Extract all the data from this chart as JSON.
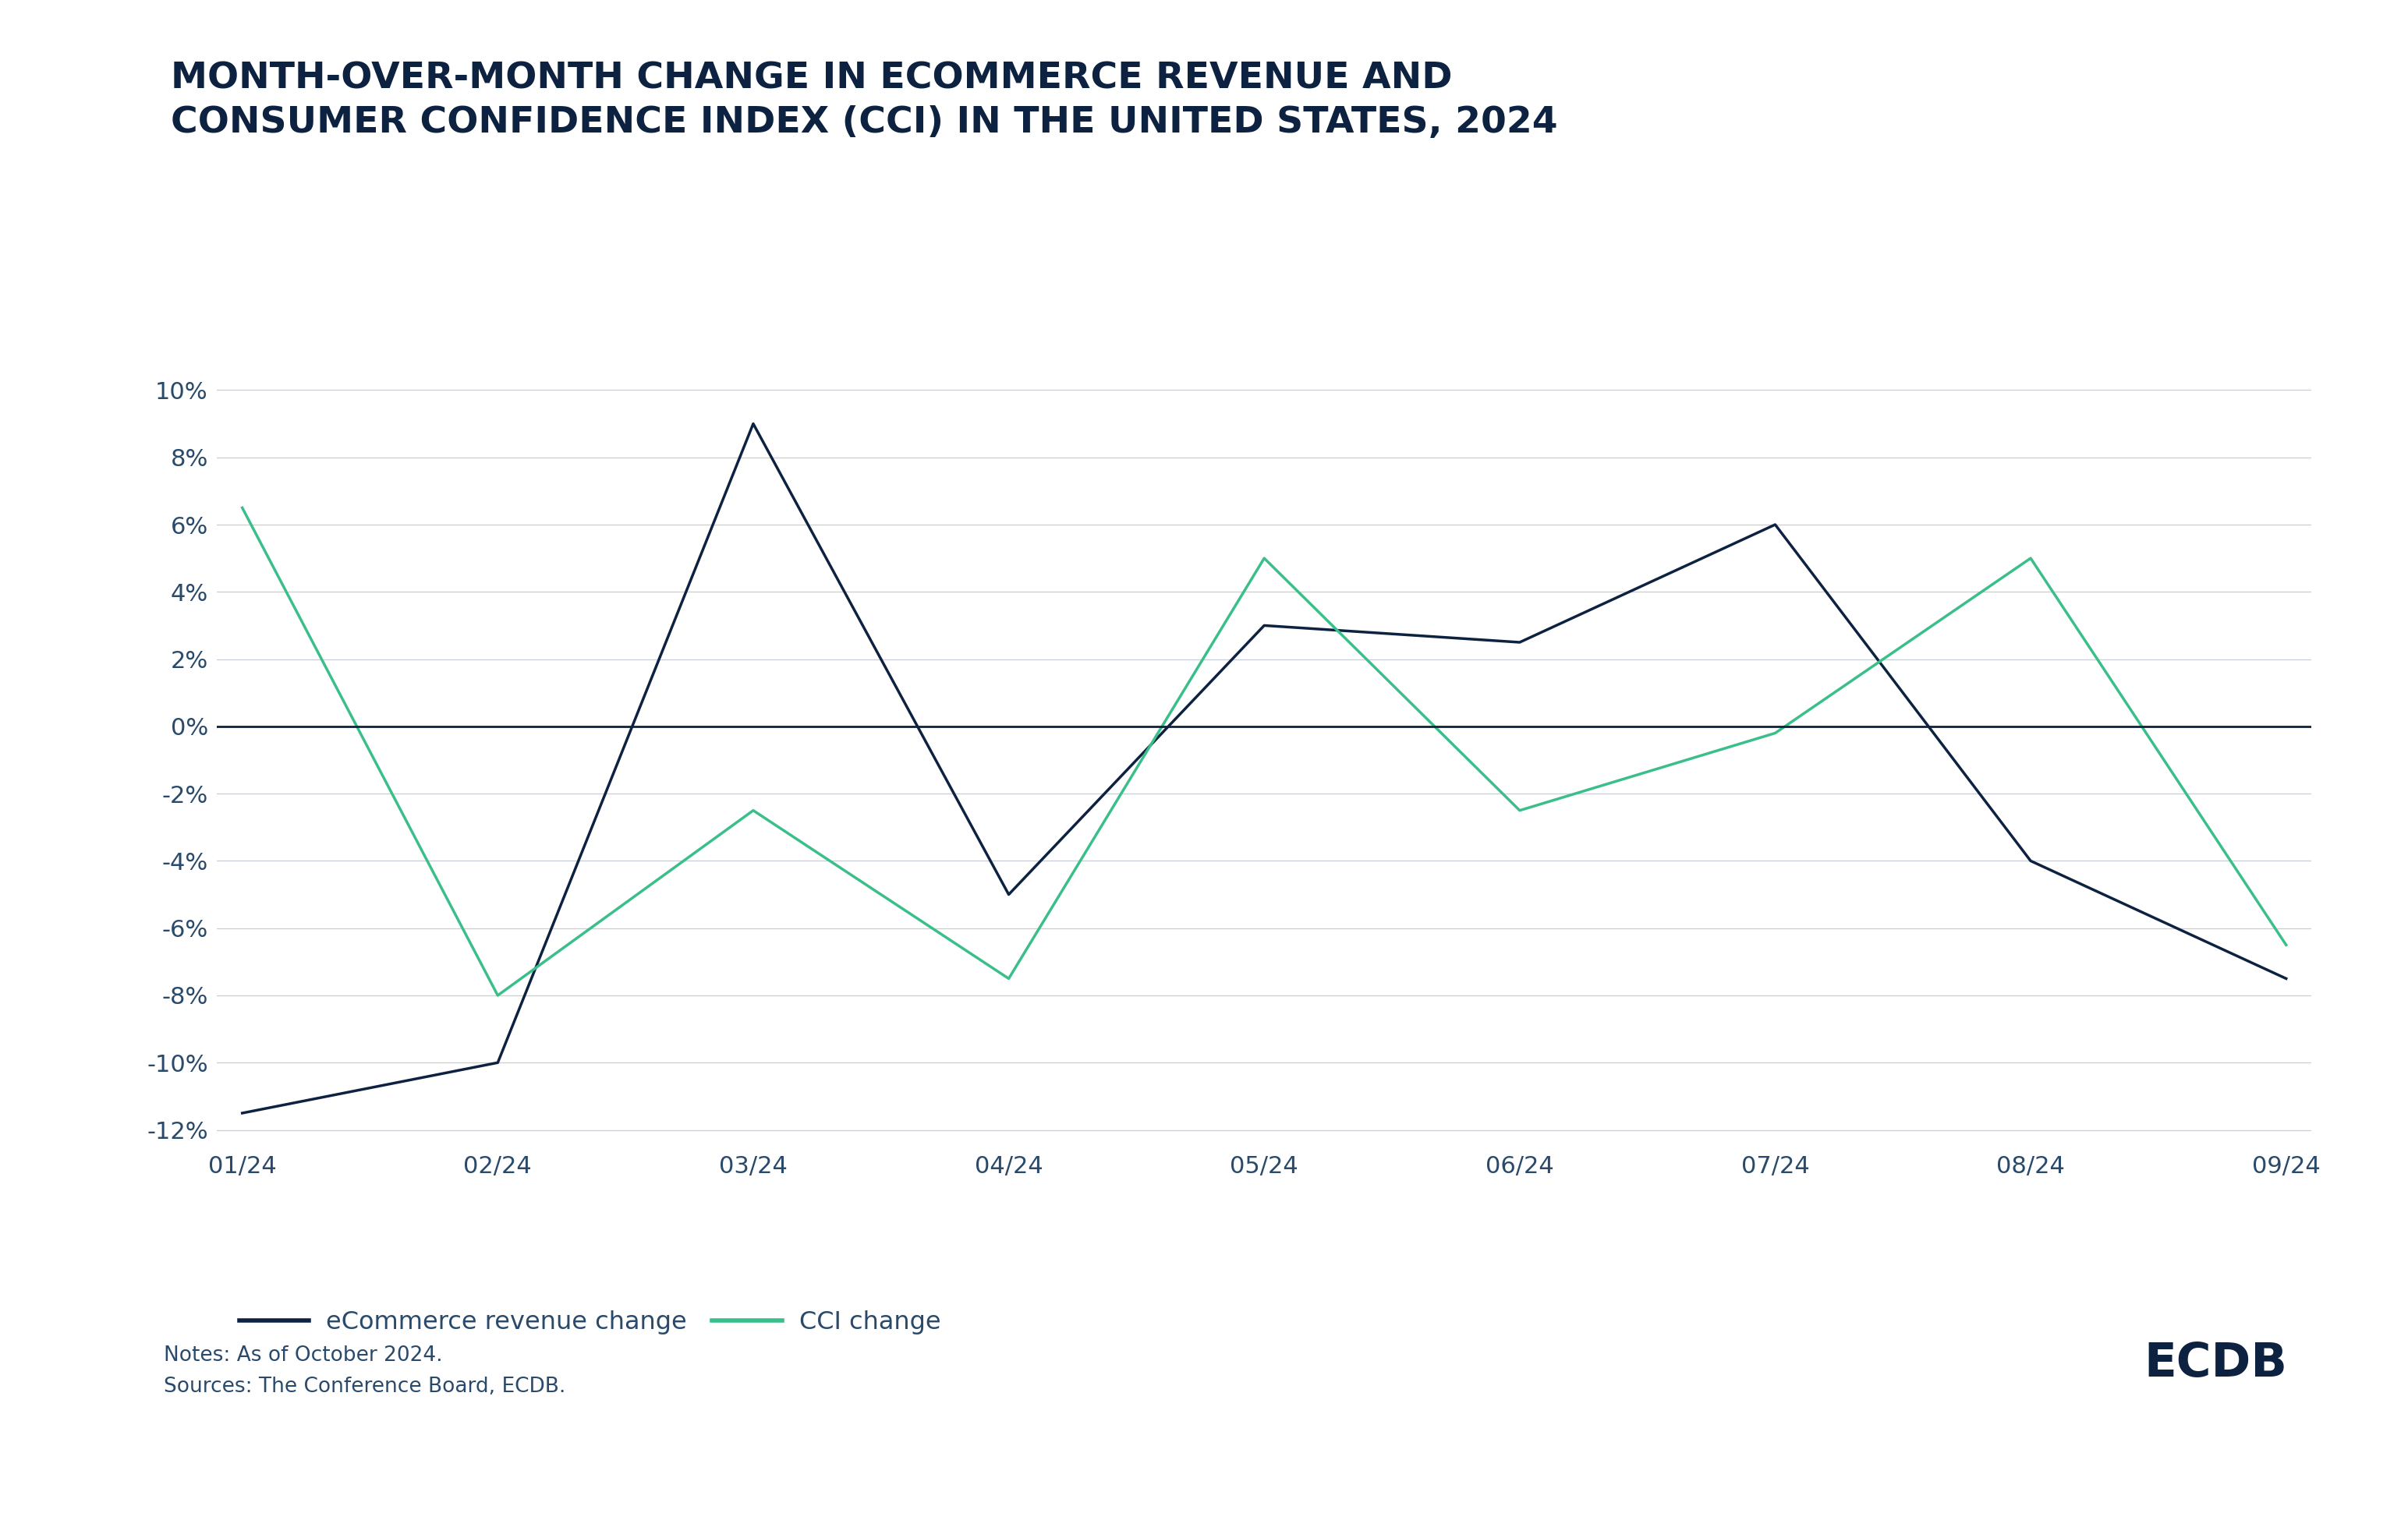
{
  "title_line1": "MONTH-OVER-MONTH CHANGE IN ECOMMERCE REVENUE AND",
  "title_line2": "CONSUMER CONFIDENCE INDEX (CCI) IN THE UNITED STATES, 2024",
  "x_labels": [
    "01/24",
    "02/24",
    "03/24",
    "04/24",
    "05/24",
    "06/24",
    "07/24",
    "08/24",
    "09/24"
  ],
  "ecommerce_values": [
    -11.5,
    -10.0,
    9.0,
    -5.0,
    3.0,
    2.5,
    6.0,
    -4.0,
    -7.5
  ],
  "cci_values": [
    6.5,
    -8.0,
    -2.5,
    -7.5,
    5.0,
    -2.5,
    -0.2,
    5.0,
    -6.5
  ],
  "ecommerce_color": "#0d2240",
  "cci_color": "#3bbf8a",
  "background_color": "#ffffff",
  "grid_color": "#c8cdd6",
  "zero_line_color": "#0d2240",
  "title_color": "#0d2240",
  "tick_label_color": "#2a4a6b",
  "ylim_min": -12,
  "ylim_max": 10,
  "ytick_values": [
    10,
    8,
    6,
    4,
    2,
    0,
    -2,
    -4,
    -6,
    -8,
    -10,
    -12
  ],
  "legend_ecommerce_label": "eCommerce revenue change",
  "legend_cci_label": "CCI change",
  "notes_line1": "Notes: As of October 2024.",
  "notes_line2": "Sources: The Conference Board, ECDB.",
  "ecdb_text": "ECDB",
  "title_bar_color": "#0d2240",
  "line_width": 2.5,
  "title_fontsize": 34,
  "tick_fontsize": 22,
  "legend_fontsize": 23,
  "notes_fontsize": 19,
  "ecdb_fontsize": 44
}
